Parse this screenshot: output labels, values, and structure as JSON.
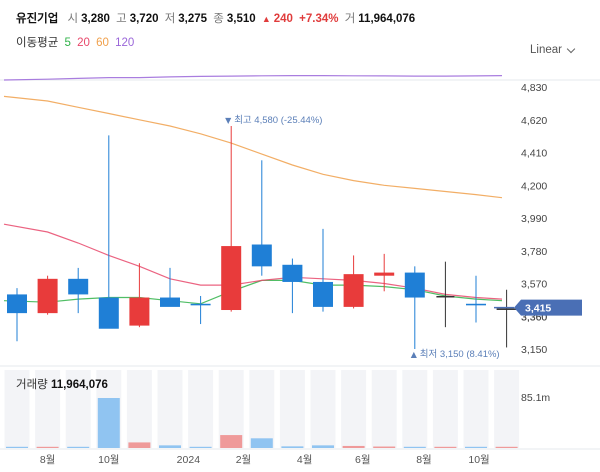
{
  "header": {
    "name": "유진기업",
    "open_label": "시",
    "open": "3,280",
    "high_label": "고",
    "high": "3,720",
    "low_label": "저",
    "low": "3,275",
    "close_label": "종",
    "close": "3,510",
    "change_icon": "triangle-up-icon",
    "change": "240",
    "change_pct": "+7.34%",
    "volume_label": "거",
    "volume": "11,964,076"
  },
  "ma_legend": {
    "label": "이동평균",
    "items": [
      {
        "period": "5",
        "color": "#31b34a"
      },
      {
        "period": "20",
        "color": "#e8486b"
      },
      {
        "period": "60",
        "color": "#f0a04b"
      },
      {
        "period": "120",
        "color": "#9a66d9"
      }
    ]
  },
  "scale_selector": {
    "value": "Linear"
  },
  "volume_header": {
    "label": "거래량",
    "value": "11,964,076"
  },
  "colors": {
    "up": "#e83b3b",
    "down": "#1f7fd6",
    "neutral": "#333333",
    "current_badge": "#4a6fb5"
  },
  "chart_data": {
    "type": "candlestick",
    "ylim": [
      3150,
      4830
    ],
    "y_ticks": [
      "4,830",
      "4,620",
      "4,410",
      "4,200",
      "3,990",
      "3,780",
      "3,570",
      "3,360",
      "3,150"
    ],
    "x_tick_labels": [
      "8월",
      "10월",
      "2024",
      "2월",
      "4월",
      "6월",
      "8월",
      "10월"
    ],
    "candles": [
      {
        "o": 3500,
        "h": 3540,
        "l": 3200,
        "c": 3380
      },
      {
        "o": 3380,
        "h": 3620,
        "l": 3370,
        "c": 3600
      },
      {
        "o": 3600,
        "h": 3670,
        "l": 3380,
        "c": 3500
      },
      {
        "o": 3480,
        "h": 4520,
        "l": 3290,
        "c": 3280
      },
      {
        "o": 3300,
        "h": 3700,
        "l": 3290,
        "c": 3480
      },
      {
        "o": 3480,
        "h": 3670,
        "l": 3430,
        "c": 3420
      },
      {
        "o": 3440,
        "h": 3490,
        "l": 3310,
        "c": 3430
      },
      {
        "o": 3400,
        "h": 4580,
        "l": 3390,
        "c": 3810
      },
      {
        "o": 3820,
        "h": 4360,
        "l": 3620,
        "c": 3680
      },
      {
        "o": 3690,
        "h": 3730,
        "l": 3380,
        "c": 3580
      },
      {
        "o": 3580,
        "h": 3920,
        "l": 3390,
        "c": 3420
      },
      {
        "o": 3420,
        "h": 3750,
        "l": 3410,
        "c": 3630
      },
      {
        "o": 3620,
        "h": 3760,
        "l": 3520,
        "c": 3640
      },
      {
        "o": 3640,
        "h": 3680,
        "l": 3150,
        "c": 3480
      },
      {
        "o": 3490,
        "h": 3710,
        "l": 3290,
        "c": 3490
      },
      {
        "o": 3440,
        "h": 3620,
        "l": 3320,
        "c": 3430
      },
      {
        "o": 3410,
        "h": 3530,
        "l": 3160,
        "c": 3410
      }
    ],
    "volume_ylabel": "85.1m",
    "volumes": [
      1.0,
      1.2,
      0.8,
      85.1,
      9.5,
      4.5,
      1.8,
      22.0,
      16.5,
      2.8,
      4.5,
      3.5,
      2.5,
      1.0,
      1.4,
      1.0,
      1.4
    ],
    "ma": [
      {
        "period": "5",
        "color": "#31b34a",
        "values": [
          3460,
          3450,
          3470,
          3480,
          3480,
          3460,
          3440,
          3520,
          3590,
          3590,
          3560,
          3560,
          3550,
          3530,
          3490,
          3470,
          3460
        ]
      },
      {
        "period": "20",
        "color": "#e8486b",
        "values": [
          3950,
          3900,
          3830,
          3750,
          3680,
          3600,
          3560,
          3560,
          3590,
          3610,
          3600,
          3590,
          3570,
          3540,
          3500,
          3480,
          3470
        ]
      },
      {
        "period": "60",
        "color": "#f0a04b",
        "values": [
          4770,
          4740,
          4700,
          4660,
          4620,
          4580,
          4530,
          4470,
          4400,
          4330,
          4270,
          4230,
          4200,
          4180,
          4160,
          4140,
          4120
        ]
      },
      {
        "period": "120",
        "color": "#9a66d9",
        "values": [
          4875,
          4880,
          4885,
          4890,
          4890,
          4895,
          4898,
          4900,
          4902,
          4903,
          4903,
          4902,
          4901,
          4900,
          4900,
          4901,
          4903
        ]
      }
    ],
    "annotations": {
      "high": {
        "text": "최고 4,580 (-25.44%)",
        "value": 4580
      },
      "low": {
        "text": "최저 3,150 (8.41%)",
        "value": 3150
      }
    },
    "current_price": {
      "value": 3415,
      "label": "3,415"
    },
    "hidden_tick": "3,360"
  }
}
